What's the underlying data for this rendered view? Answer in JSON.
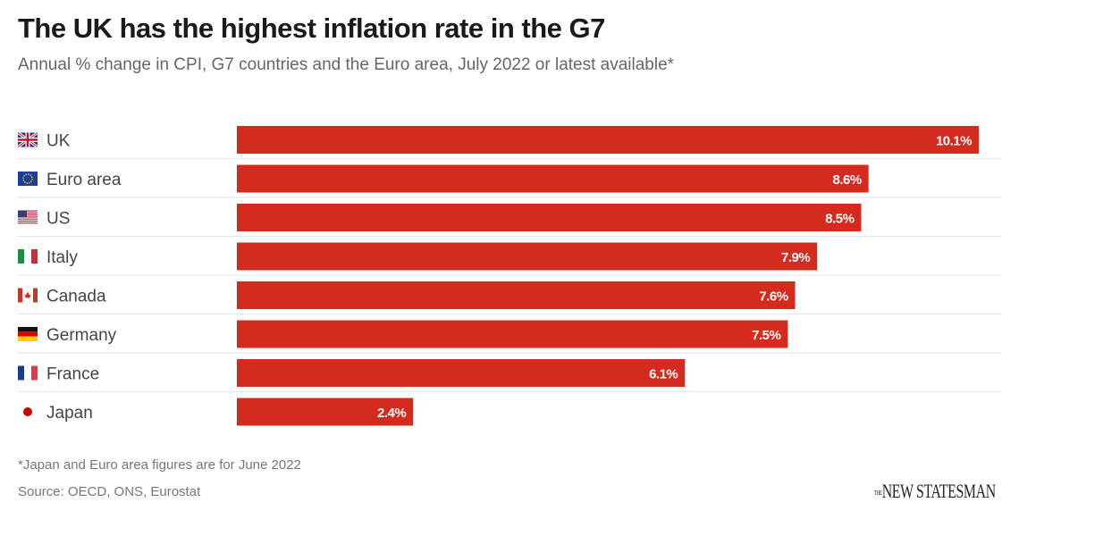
{
  "title": "The UK has the highest inflation rate in the G7",
  "subtitle": "Annual % change in CPI, G7 countries and the Euro area, July 2022 or latest available*",
  "footnote": "*Japan and Euro area figures are for June 2022",
  "source": "Source: OECD, ONS, Eurostat",
  "logo": {
    "small": "THE",
    "main": "NEW STATESMAN"
  },
  "chart_data": {
    "type": "bar",
    "orientation": "horizontal",
    "categories": [
      "UK",
      "Euro area",
      "US",
      "Italy",
      "Canada",
      "Germany",
      "France",
      "Japan"
    ],
    "values": [
      10.1,
      8.6,
      8.5,
      7.9,
      7.6,
      7.5,
      6.1,
      2.4
    ],
    "data_labels": [
      "10.1%",
      "8.6%",
      "8.5%",
      "7.9%",
      "7.6%",
      "7.5%",
      "6.1%",
      "2.4%"
    ],
    "flag_icons": [
      "uk-flag-icon",
      "eu-flag-icon",
      "us-flag-icon",
      "italy-flag-icon",
      "canada-flag-icon",
      "germany-flag-icon",
      "france-flag-icon",
      "japan-flag-icon"
    ],
    "bar_color": "#d52b1e",
    "xlim": [
      0,
      10.1
    ],
    "grid": false
  }
}
